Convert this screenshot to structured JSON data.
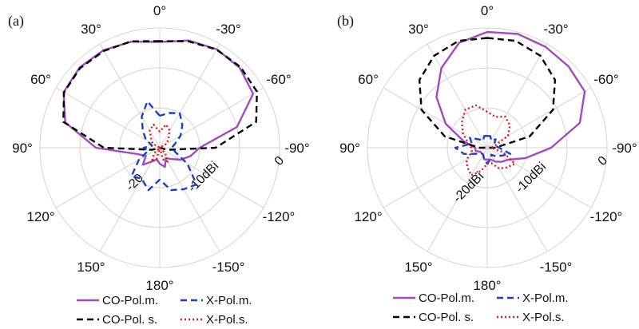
{
  "chart_data": [
    {
      "type": "polar",
      "panel": "(a)",
      "angle_ticks": [
        "0°",
        "-30°",
        "-60°",
        "-90°",
        "-120°",
        "-150°",
        "180°",
        "150°",
        "120°",
        "90°",
        "60°",
        "30°"
      ],
      "radial_ticks": [
        {
          "value": -20,
          "label": "-20"
        },
        {
          "value": -10,
          "label": "-10dBi"
        },
        {
          "value": 0,
          "label": "0"
        }
      ],
      "rlim": [
        -30,
        0
      ],
      "grid": true,
      "legend_placement": "bottom",
      "theta_deg": [
        0,
        15,
        30,
        45,
        60,
        75,
        90,
        105,
        120,
        135,
        150,
        165,
        180,
        195,
        210,
        225,
        240,
        255,
        270,
        285,
        300,
        315,
        330,
        345,
        360
      ],
      "series": [
        {
          "name": "CO-Pol.m.",
          "color": "#a24bc0",
          "dash": "solid",
          "r": [
            -3.5,
            -2.5,
            -1.8,
            -1.6,
            -2.2,
            -5.5,
            -14,
            -24,
            -26,
            -24,
            -26,
            -27,
            -26,
            -25,
            -27,
            -26,
            -24,
            -22,
            -20,
            -10,
            -3.0,
            -1.7,
            -1.5,
            -2.2,
            -3.5
          ]
        },
        {
          "name": "CO-Pol. s.",
          "color": "#000000",
          "dash": "dashed",
          "r": [
            -3.3,
            -2.4,
            -2.0,
            -1.8,
            -2.3,
            -5.0,
            -16,
            -28,
            -30,
            -30,
            -30,
            -30,
            -30,
            -30,
            -30,
            -30,
            -30,
            -28,
            -16,
            -5.0,
            -1.9,
            -1.4,
            -1.6,
            -2.4,
            -3.3
          ]
        },
        {
          "name": "X-Pol.m.",
          "color": "#1f3fbf",
          "dash": "dashed",
          "r": [
            -22,
            -18,
            -21,
            -24,
            -26,
            -28,
            -26,
            -27,
            -24,
            -20,
            -21,
            -19,
            -22,
            -19,
            -18,
            -17,
            -22,
            -26,
            -27,
            -26,
            -24,
            -22,
            -20,
            -21,
            -22
          ]
        },
        {
          "name": "X-Pol.s.",
          "color": "#d81f1f",
          "dash": "dotted",
          "r": [
            -26,
            -24,
            -25,
            -27,
            -28,
            -30,
            -30,
            -30,
            -30,
            -28,
            -26,
            -27,
            -30,
            -27,
            -26,
            -28,
            -30,
            -30,
            -30,
            -30,
            -28,
            -27,
            -25,
            -24,
            -26
          ]
        }
      ]
    },
    {
      "type": "polar",
      "panel": "(b)",
      "angle_ticks": [
        "0°",
        "-30°",
        "-60°",
        "-90°",
        "-120°",
        "-150°",
        "180°",
        "150°",
        "120°",
        "90°",
        "60°",
        "30°"
      ],
      "radial_ticks": [
        {
          "value": -20,
          "label": "-20dBi"
        },
        {
          "value": -10,
          "label": "-10dBi"
        },
        {
          "value": 0,
          "label": "0"
        }
      ],
      "rlim": [
        -30,
        0
      ],
      "grid": true,
      "legend_placement": "bottom",
      "theta_deg": [
        0,
        15,
        30,
        45,
        60,
        75,
        90,
        105,
        120,
        135,
        150,
        165,
        180,
        195,
        210,
        225,
        240,
        255,
        270,
        285,
        300,
        315,
        330,
        345,
        360
      ],
      "series": [
        {
          "name": "CO-Pol.m.",
          "color": "#a24bc0",
          "dash": "solid",
          "r": [
            -1.0,
            -2.8,
            -7.0,
            -12,
            -18,
            -24,
            -27,
            -27,
            -28,
            -28,
            -28,
            -27,
            -27,
            -27,
            -26,
            -25,
            -24,
            -20,
            -14,
            -6.0,
            -1.8,
            -1.2,
            -0.8,
            -0.5,
            -1.0
          ]
        },
        {
          "name": "CO-Pol. s.",
          "color": "#000000",
          "dash": "dashed",
          "r": [
            -2.5,
            -2.3,
            -3.4,
            -6.0,
            -11,
            -19,
            -28,
            -30,
            -30,
            -30,
            -30,
            -30,
            -30,
            -30,
            -30,
            -30,
            -30,
            -30,
            -28,
            -19,
            -11,
            -6.0,
            -3.4,
            -2.3,
            -2.5
          ]
        },
        {
          "name": "X-Pol.m.",
          "color": "#1f3fbf",
          "dash": "dashed",
          "r": [
            -27,
            -27,
            -28,
            -27,
            -25,
            -26,
            -22,
            -24,
            -27,
            -28,
            -28,
            -27,
            -26,
            -27,
            -28,
            -27,
            -26,
            -24,
            -27,
            -28,
            -28,
            -27,
            -28,
            -27,
            -27
          ]
        },
        {
          "name": "X-Pol.s.",
          "color": "#d81f1f",
          "dash": "dotted",
          "r": [
            -21,
            -19,
            -19,
            -21,
            -23,
            -25,
            -26,
            -26,
            -24,
            -23,
            -22,
            -24,
            -26,
            -26,
            -24,
            -23,
            -22,
            -26,
            -29,
            -28,
            -24,
            -22,
            -21,
            -22,
            -21
          ]
        }
      ]
    }
  ]
}
